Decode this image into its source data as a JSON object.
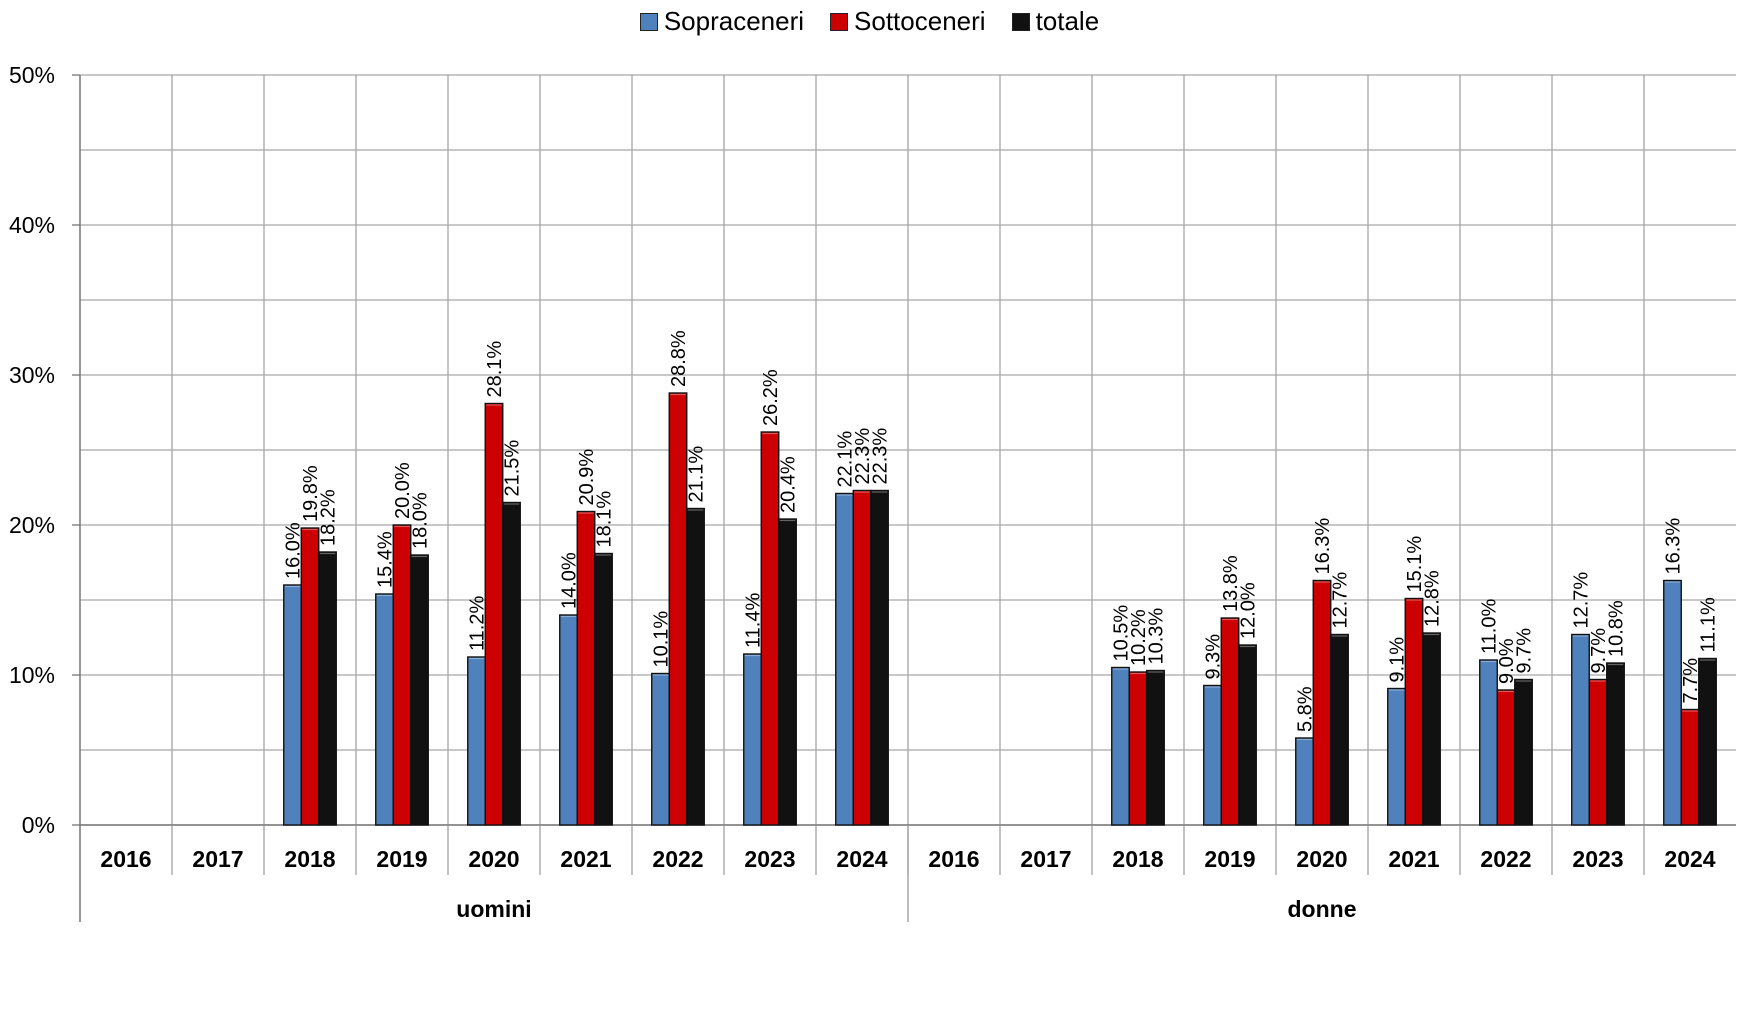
{
  "colors": {
    "sopraceneri": "#4f81bd",
    "sottoceneri": "#cc0000",
    "totale": "#111111",
    "grid": "#a6a6a6"
  },
  "chart_data": {
    "type": "bar",
    "y_ticks": [
      "0%",
      "10%",
      "20%",
      "30%",
      "40%",
      "50%"
    ],
    "ylim": [
      0,
      50
    ],
    "grid": true,
    "legend_position": "top-center",
    "groups": [
      {
        "name": "uomini",
        "categories": [
          "2016",
          "2017",
          "2018",
          "2019",
          "2020",
          "2021",
          "2022",
          "2023",
          "2024"
        ],
        "series": [
          {
            "name": "Sopraceneri",
            "values": [
              null,
              null,
              16.0,
              15.4,
              11.2,
              14.0,
              10.1,
              11.4,
              22.1
            ],
            "labels": [
              "",
              "",
              "16.0%",
              "15.4%",
              "11.2%",
              "14.0%",
              "10.1%",
              "11.4%",
              "22.1%"
            ]
          },
          {
            "name": "Sottoceneri",
            "values": [
              null,
              null,
              19.8,
              20.0,
              28.1,
              20.9,
              28.8,
              26.2,
              22.3
            ],
            "labels": [
              "",
              "",
              "19.8%",
              "20.0%",
              "28.1%",
              "20.9%",
              "28.8%",
              "26.2%",
              "22.3%"
            ]
          },
          {
            "name": "totale",
            "values": [
              null,
              null,
              18.2,
              18.0,
              21.5,
              18.1,
              21.1,
              20.4,
              22.3
            ],
            "labels": [
              "",
              "",
              "18.2%",
              "18.0%",
              "21.5%",
              "18.1%",
              "21.1%",
              "20.4%",
              "22.3%"
            ]
          }
        ]
      },
      {
        "name": "donne",
        "categories": [
          "2016",
          "2017",
          "2018",
          "2019",
          "2020",
          "2021",
          "2022",
          "2023",
          "2024"
        ],
        "series": [
          {
            "name": "Sopraceneri",
            "values": [
              null,
              null,
              10.5,
              9.3,
              5.8,
              9.1,
              11.0,
              12.7,
              16.3
            ],
            "labels": [
              "",
              "",
              "10.5%",
              "9.3%",
              "5.8%",
              "9.1%",
              "11.0%",
              "12.7%",
              "16.3%"
            ]
          },
          {
            "name": "Sottoceneri",
            "values": [
              null,
              null,
              10.2,
              13.8,
              16.3,
              15.1,
              9.0,
              9.7,
              7.7
            ],
            "labels": [
              "",
              "",
              "10.2%",
              "13.8%",
              "16.3%",
              "15.1%",
              "9.0%",
              "9.7%",
              "7.7%"
            ]
          },
          {
            "name": "totale",
            "values": [
              null,
              null,
              10.3,
              12.0,
              12.7,
              12.8,
              9.7,
              10.8,
              11.1
            ],
            "labels": [
              "",
              "",
              "10.3%",
              "12.0%",
              "12.7%",
              "12.8%",
              "9.7%",
              "10.8%",
              "11.1%"
            ]
          }
        ]
      }
    ]
  }
}
